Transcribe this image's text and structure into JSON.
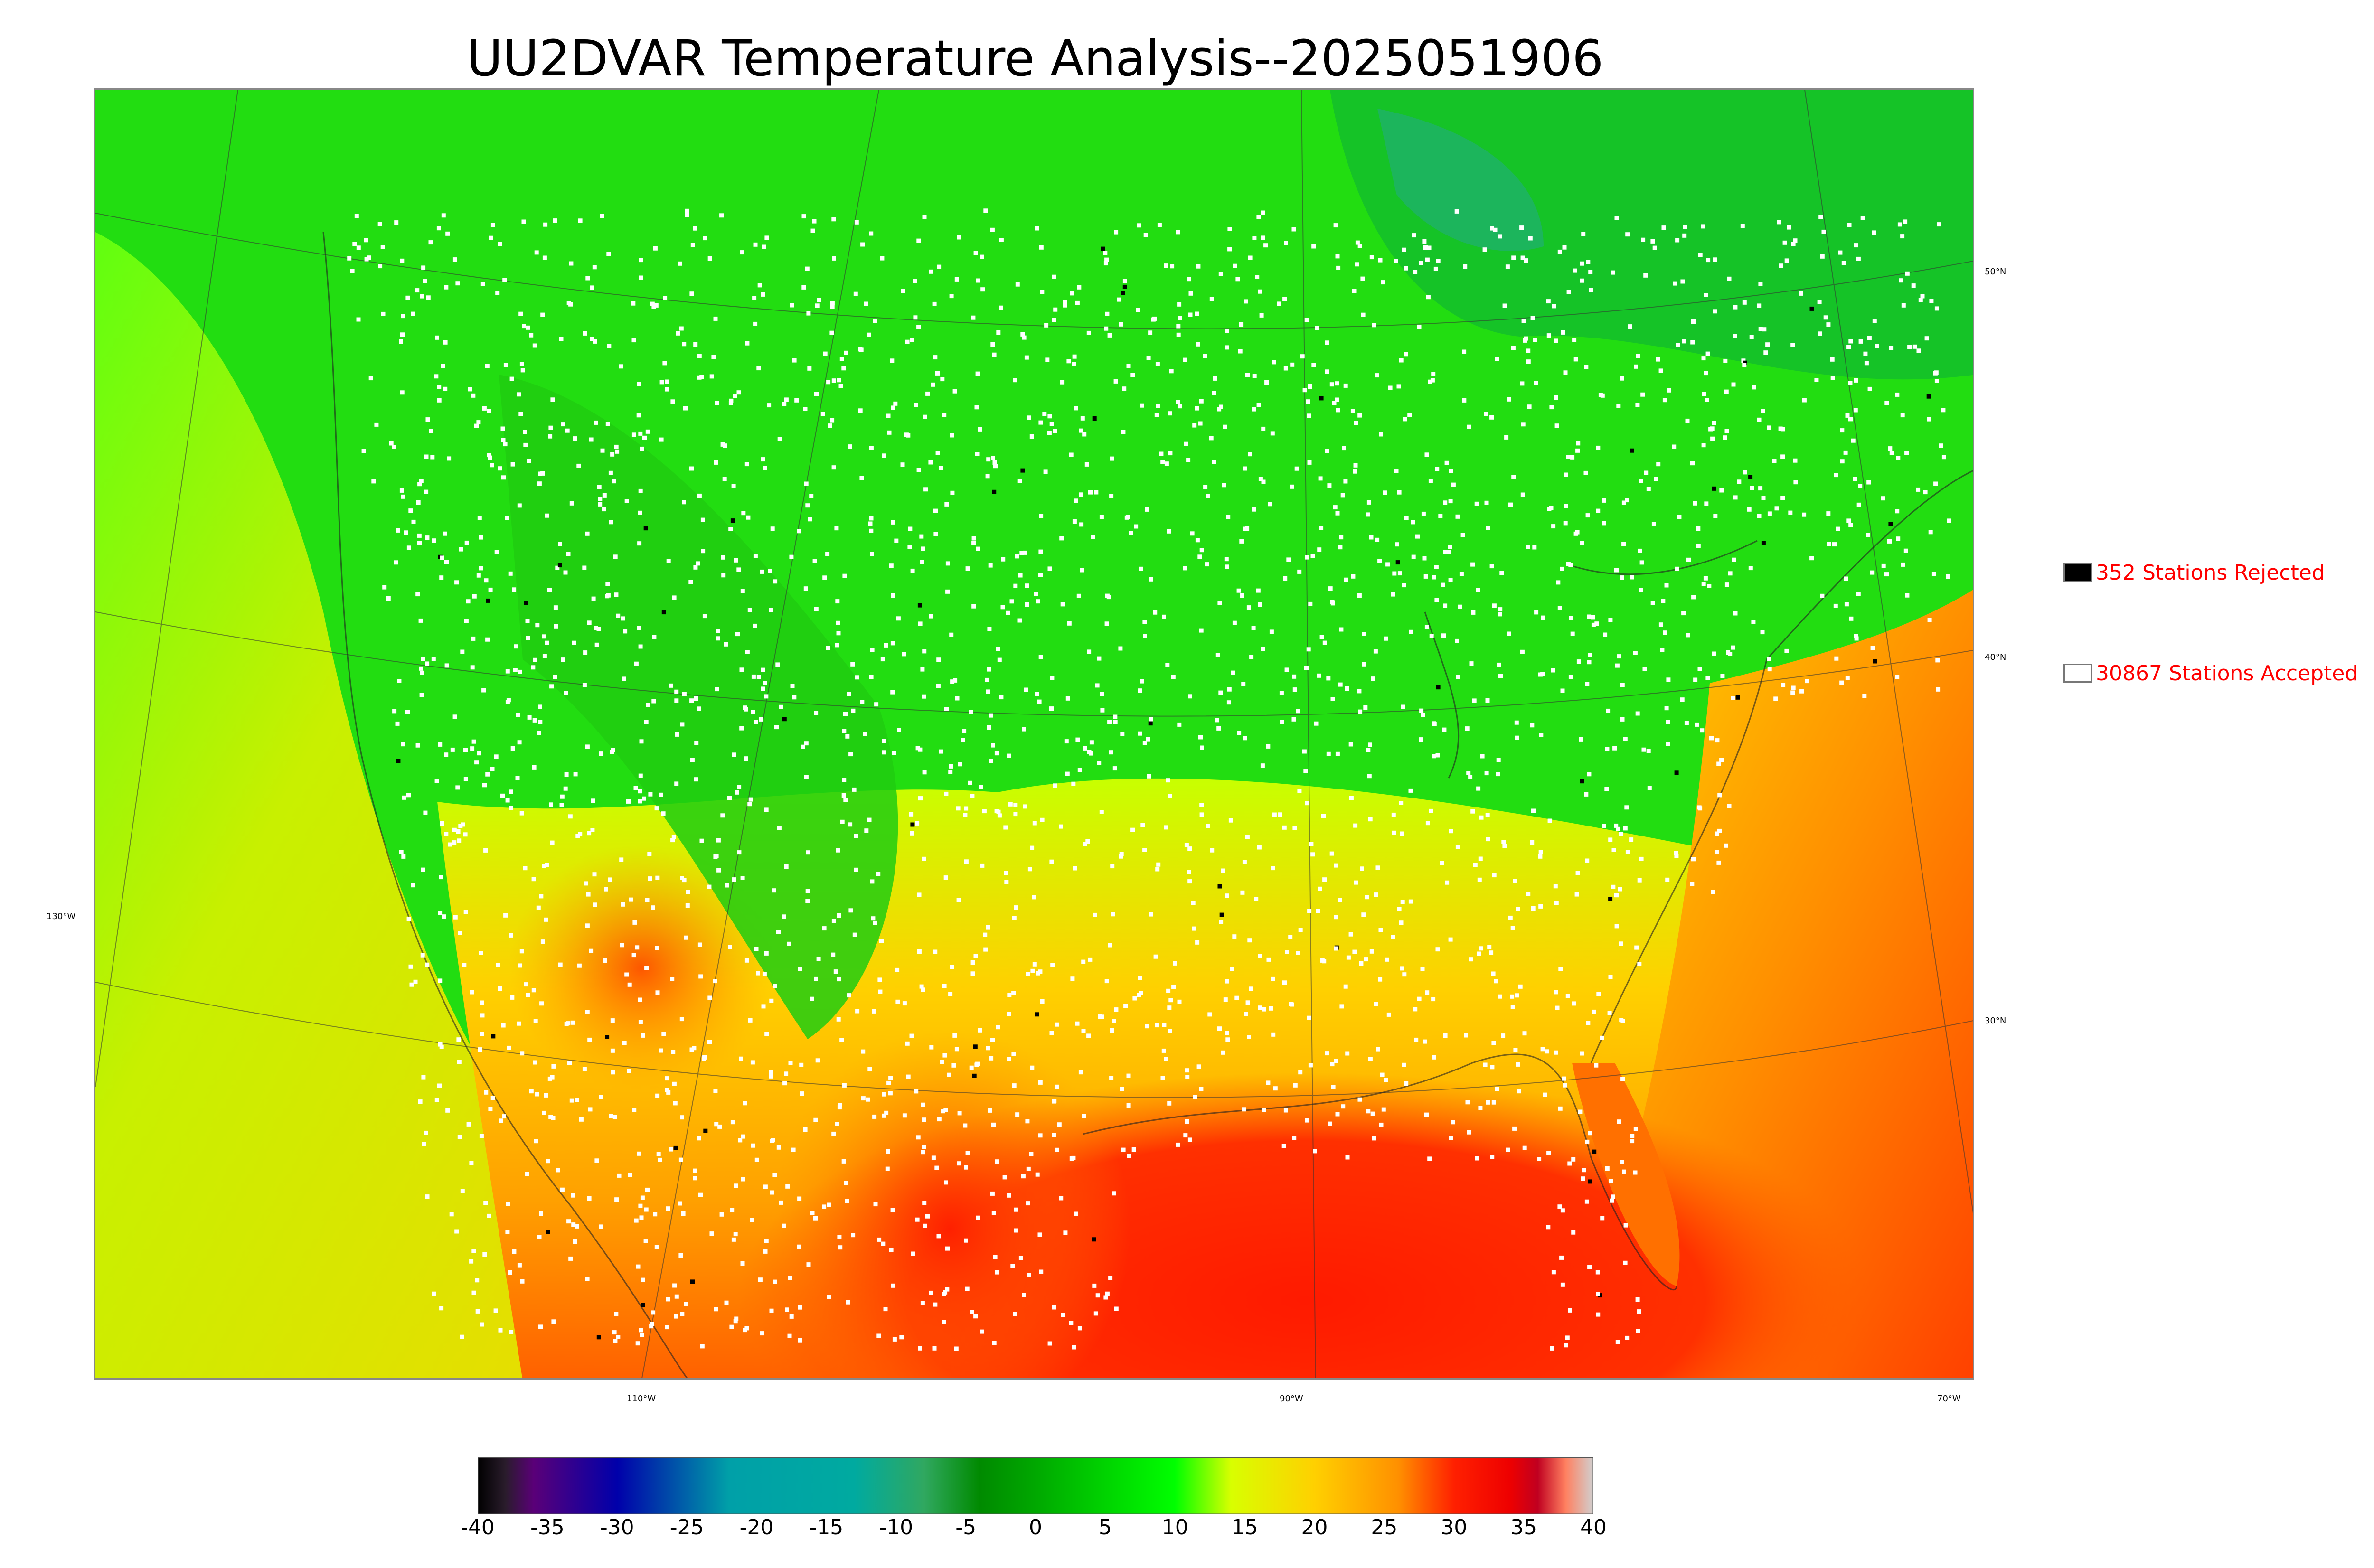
{
  "title": "UU2DVAR Temperature Analysis--2025051906",
  "map": {
    "latitude_labels": [
      "50°N",
      "40°N",
      "30°N"
    ],
    "longitude_labels": [
      "130°W",
      "110°W",
      "90°W",
      "70°W"
    ],
    "background_color": "#44dd22"
  },
  "legend": {
    "rejected": {
      "label": "352 Stations Rejected",
      "count": 352,
      "color": "#000000"
    },
    "accepted": {
      "label": "30867 Stations Accepted",
      "count": 30867,
      "color": "#ffffff"
    }
  },
  "colorbar": {
    "min": -40,
    "max": 40,
    "tick_labels": [
      "-40",
      "-35",
      "-30",
      "-25",
      "-20",
      "-15",
      "-10",
      "-5",
      "0",
      "5",
      "10",
      "15",
      "20",
      "25",
      "30",
      "35",
      "40"
    ],
    "stops": [
      {
        "value": -40,
        "color": "#000000"
      },
      {
        "value": -38,
        "color": "#2a1c2c"
      },
      {
        "value": -36,
        "color": "#5a0078"
      },
      {
        "value": -30,
        "color": "#0000aa"
      },
      {
        "value": -22,
        "color": "#00a0a8"
      },
      {
        "value": -13,
        "color": "#00aaa0"
      },
      {
        "value": -8,
        "color": "#30a860"
      },
      {
        "value": -4,
        "color": "#008a00"
      },
      {
        "value": 0,
        "color": "#00a800"
      },
      {
        "value": 10,
        "color": "#00ff00"
      },
      {
        "value": 14,
        "color": "#d8ff00"
      },
      {
        "value": 20,
        "color": "#ffd000"
      },
      {
        "value": 26,
        "color": "#ff9000"
      },
      {
        "value": 30,
        "color": "#ff2000"
      },
      {
        "value": 34,
        "color": "#ee0000"
      },
      {
        "value": 36,
        "color": "#c00020"
      },
      {
        "value": 38,
        "color": "#ff8060"
      },
      {
        "value": 40,
        "color": "#d0d0d0"
      }
    ]
  }
}
